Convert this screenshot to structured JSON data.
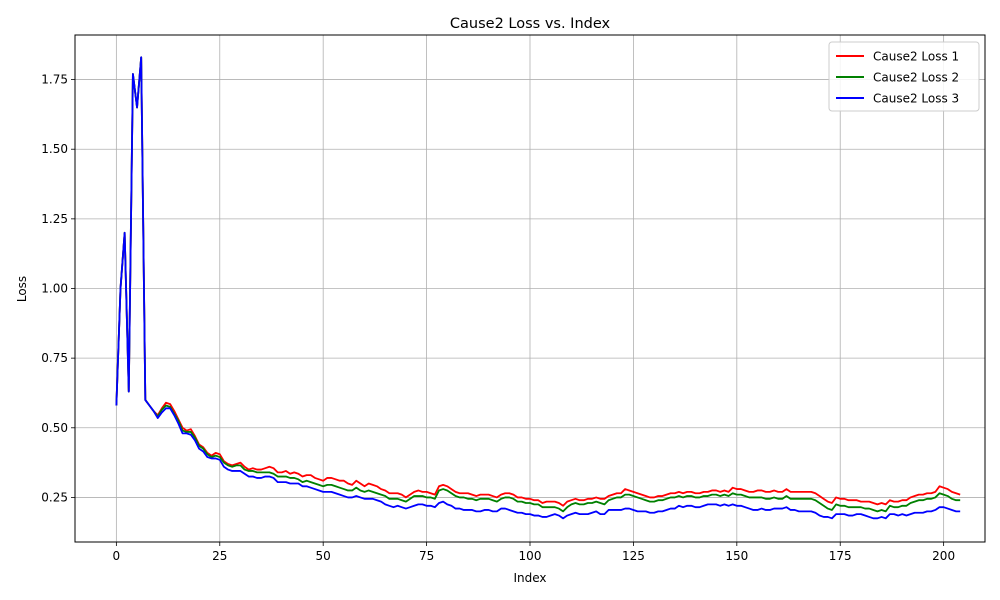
{
  "chart_data": {
    "type": "line",
    "title": "Cause2 Loss vs. Index",
    "xlabel": "Index",
    "ylabel": "Loss",
    "xlim": [
      -10,
      210
    ],
    "ylim": [
      0.09,
      1.91
    ],
    "xticks": [
      0,
      25,
      50,
      75,
      100,
      125,
      150,
      175,
      200
    ],
    "yticks": [
      0.25,
      0.5,
      0.75,
      1.0,
      1.25,
      1.5,
      1.75
    ],
    "grid": true,
    "legend_position": "top-right",
    "x_start": 0,
    "series": [
      {
        "name": "Cause2 Loss 1",
        "color": "#ff0000",
        "values": [
          0.58,
          1.0,
          1.2,
          0.63,
          1.77,
          1.65,
          1.83,
          0.6,
          0.58,
          0.56,
          0.545,
          0.57,
          0.59,
          0.585,
          0.56,
          0.53,
          0.5,
          0.49,
          0.495,
          0.47,
          0.44,
          0.43,
          0.41,
          0.4,
          0.41,
          0.405,
          0.38,
          0.37,
          0.365,
          0.37,
          0.375,
          0.36,
          0.35,
          0.355,
          0.35,
          0.35,
          0.355,
          0.36,
          0.355,
          0.34,
          0.34,
          0.345,
          0.335,
          0.34,
          0.335,
          0.325,
          0.33,
          0.33,
          0.32,
          0.315,
          0.31,
          0.32,
          0.32,
          0.315,
          0.31,
          0.31,
          0.3,
          0.295,
          0.31,
          0.3,
          0.29,
          0.3,
          0.295,
          0.29,
          0.28,
          0.275,
          0.265,
          0.265,
          0.265,
          0.26,
          0.25,
          0.26,
          0.27,
          0.275,
          0.27,
          0.27,
          0.265,
          0.26,
          0.29,
          0.295,
          0.29,
          0.28,
          0.27,
          0.265,
          0.265,
          0.265,
          0.26,
          0.255,
          0.26,
          0.26,
          0.26,
          0.255,
          0.25,
          0.26,
          0.265,
          0.265,
          0.26,
          0.25,
          0.25,
          0.245,
          0.245,
          0.24,
          0.24,
          0.23,
          0.235,
          0.235,
          0.235,
          0.23,
          0.22,
          0.235,
          0.24,
          0.245,
          0.24,
          0.24,
          0.245,
          0.245,
          0.25,
          0.245,
          0.245,
          0.255,
          0.26,
          0.265,
          0.265,
          0.28,
          0.275,
          0.27,
          0.265,
          0.26,
          0.255,
          0.25,
          0.25,
          0.255,
          0.255,
          0.26,
          0.265,
          0.265,
          0.27,
          0.265,
          0.27,
          0.27,
          0.265,
          0.265,
          0.27,
          0.27,
          0.275,
          0.275,
          0.27,
          0.275,
          0.27,
          0.285,
          0.28,
          0.28,
          0.275,
          0.27,
          0.27,
          0.275,
          0.275,
          0.27,
          0.27,
          0.275,
          0.27,
          0.27,
          0.28,
          0.27,
          0.27,
          0.27,
          0.27,
          0.27,
          0.27,
          0.265,
          0.255,
          0.245,
          0.235,
          0.23,
          0.25,
          0.245,
          0.245,
          0.24,
          0.24,
          0.24,
          0.235,
          0.235,
          0.235,
          0.23,
          0.225,
          0.23,
          0.225,
          0.24,
          0.235,
          0.235,
          0.24,
          0.24,
          0.25,
          0.255,
          0.26,
          0.26,
          0.265,
          0.265,
          0.27,
          0.29,
          0.285,
          0.28,
          0.27,
          0.265,
          0.26
        ]
      },
      {
        "name": "Cause2 Loss 2",
        "color": "#008000",
        "values": [
          0.58,
          1.0,
          1.2,
          0.63,
          1.77,
          1.65,
          1.83,
          0.6,
          0.58,
          0.56,
          0.54,
          0.565,
          0.58,
          0.575,
          0.55,
          0.525,
          0.49,
          0.485,
          0.485,
          0.465,
          0.435,
          0.425,
          0.405,
          0.395,
          0.4,
          0.395,
          0.375,
          0.365,
          0.36,
          0.365,
          0.365,
          0.35,
          0.345,
          0.345,
          0.34,
          0.34,
          0.34,
          0.34,
          0.335,
          0.325,
          0.325,
          0.325,
          0.32,
          0.32,
          0.315,
          0.305,
          0.31,
          0.305,
          0.3,
          0.295,
          0.29,
          0.295,
          0.295,
          0.29,
          0.285,
          0.28,
          0.275,
          0.275,
          0.285,
          0.275,
          0.27,
          0.275,
          0.27,
          0.265,
          0.26,
          0.255,
          0.245,
          0.245,
          0.245,
          0.24,
          0.235,
          0.245,
          0.255,
          0.255,
          0.255,
          0.25,
          0.25,
          0.245,
          0.275,
          0.28,
          0.275,
          0.265,
          0.255,
          0.25,
          0.25,
          0.245,
          0.245,
          0.24,
          0.245,
          0.245,
          0.245,
          0.24,
          0.235,
          0.245,
          0.25,
          0.25,
          0.245,
          0.235,
          0.235,
          0.23,
          0.23,
          0.225,
          0.225,
          0.215,
          0.215,
          0.215,
          0.215,
          0.21,
          0.2,
          0.215,
          0.225,
          0.23,
          0.225,
          0.225,
          0.23,
          0.23,
          0.235,
          0.23,
          0.225,
          0.24,
          0.245,
          0.25,
          0.25,
          0.26,
          0.26,
          0.255,
          0.25,
          0.245,
          0.24,
          0.235,
          0.235,
          0.24,
          0.24,
          0.245,
          0.25,
          0.25,
          0.255,
          0.25,
          0.255,
          0.255,
          0.25,
          0.25,
          0.255,
          0.255,
          0.26,
          0.26,
          0.255,
          0.26,
          0.255,
          0.265,
          0.26,
          0.26,
          0.255,
          0.25,
          0.25,
          0.25,
          0.25,
          0.245,
          0.245,
          0.25,
          0.245,
          0.245,
          0.255,
          0.245,
          0.245,
          0.245,
          0.245,
          0.245,
          0.245,
          0.24,
          0.23,
          0.22,
          0.21,
          0.205,
          0.225,
          0.22,
          0.22,
          0.215,
          0.215,
          0.215,
          0.215,
          0.21,
          0.21,
          0.205,
          0.2,
          0.205,
          0.2,
          0.22,
          0.215,
          0.215,
          0.22,
          0.22,
          0.23,
          0.235,
          0.24,
          0.24,
          0.245,
          0.245,
          0.25,
          0.265,
          0.26,
          0.255,
          0.245,
          0.24,
          0.24
        ]
      },
      {
        "name": "Cause2 Loss 3",
        "color": "#0000ff",
        "values": [
          0.58,
          1.0,
          1.2,
          0.63,
          1.77,
          1.65,
          1.83,
          0.6,
          0.58,
          0.56,
          0.535,
          0.555,
          0.57,
          0.57,
          0.545,
          0.515,
          0.48,
          0.48,
          0.475,
          0.455,
          0.425,
          0.415,
          0.395,
          0.39,
          0.39,
          0.385,
          0.36,
          0.35,
          0.345,
          0.345,
          0.345,
          0.335,
          0.325,
          0.325,
          0.32,
          0.32,
          0.325,
          0.325,
          0.32,
          0.305,
          0.305,
          0.305,
          0.3,
          0.3,
          0.3,
          0.29,
          0.29,
          0.285,
          0.28,
          0.275,
          0.27,
          0.27,
          0.27,
          0.265,
          0.26,
          0.255,
          0.25,
          0.25,
          0.255,
          0.25,
          0.245,
          0.245,
          0.245,
          0.24,
          0.235,
          0.225,
          0.22,
          0.215,
          0.22,
          0.215,
          0.21,
          0.215,
          0.22,
          0.225,
          0.225,
          0.22,
          0.22,
          0.215,
          0.23,
          0.235,
          0.225,
          0.22,
          0.21,
          0.21,
          0.205,
          0.205,
          0.205,
          0.2,
          0.2,
          0.205,
          0.205,
          0.2,
          0.2,
          0.21,
          0.21,
          0.205,
          0.2,
          0.195,
          0.195,
          0.19,
          0.19,
          0.185,
          0.185,
          0.18,
          0.18,
          0.185,
          0.19,
          0.185,
          0.175,
          0.185,
          0.19,
          0.195,
          0.19,
          0.19,
          0.19,
          0.195,
          0.2,
          0.19,
          0.19,
          0.205,
          0.205,
          0.205,
          0.205,
          0.21,
          0.21,
          0.205,
          0.2,
          0.2,
          0.2,
          0.195,
          0.195,
          0.2,
          0.2,
          0.205,
          0.21,
          0.21,
          0.22,
          0.215,
          0.22,
          0.22,
          0.215,
          0.215,
          0.22,
          0.225,
          0.225,
          0.225,
          0.22,
          0.225,
          0.22,
          0.225,
          0.22,
          0.22,
          0.215,
          0.21,
          0.205,
          0.205,
          0.21,
          0.205,
          0.205,
          0.21,
          0.21,
          0.21,
          0.215,
          0.205,
          0.205,
          0.2,
          0.2,
          0.2,
          0.2,
          0.195,
          0.185,
          0.18,
          0.18,
          0.175,
          0.19,
          0.19,
          0.19,
          0.185,
          0.185,
          0.19,
          0.19,
          0.185,
          0.18,
          0.175,
          0.175,
          0.18,
          0.175,
          0.19,
          0.19,
          0.185,
          0.19,
          0.185,
          0.19,
          0.195,
          0.195,
          0.195,
          0.2,
          0.2,
          0.205,
          0.215,
          0.215,
          0.21,
          0.205,
          0.2,
          0.2
        ]
      }
    ]
  }
}
